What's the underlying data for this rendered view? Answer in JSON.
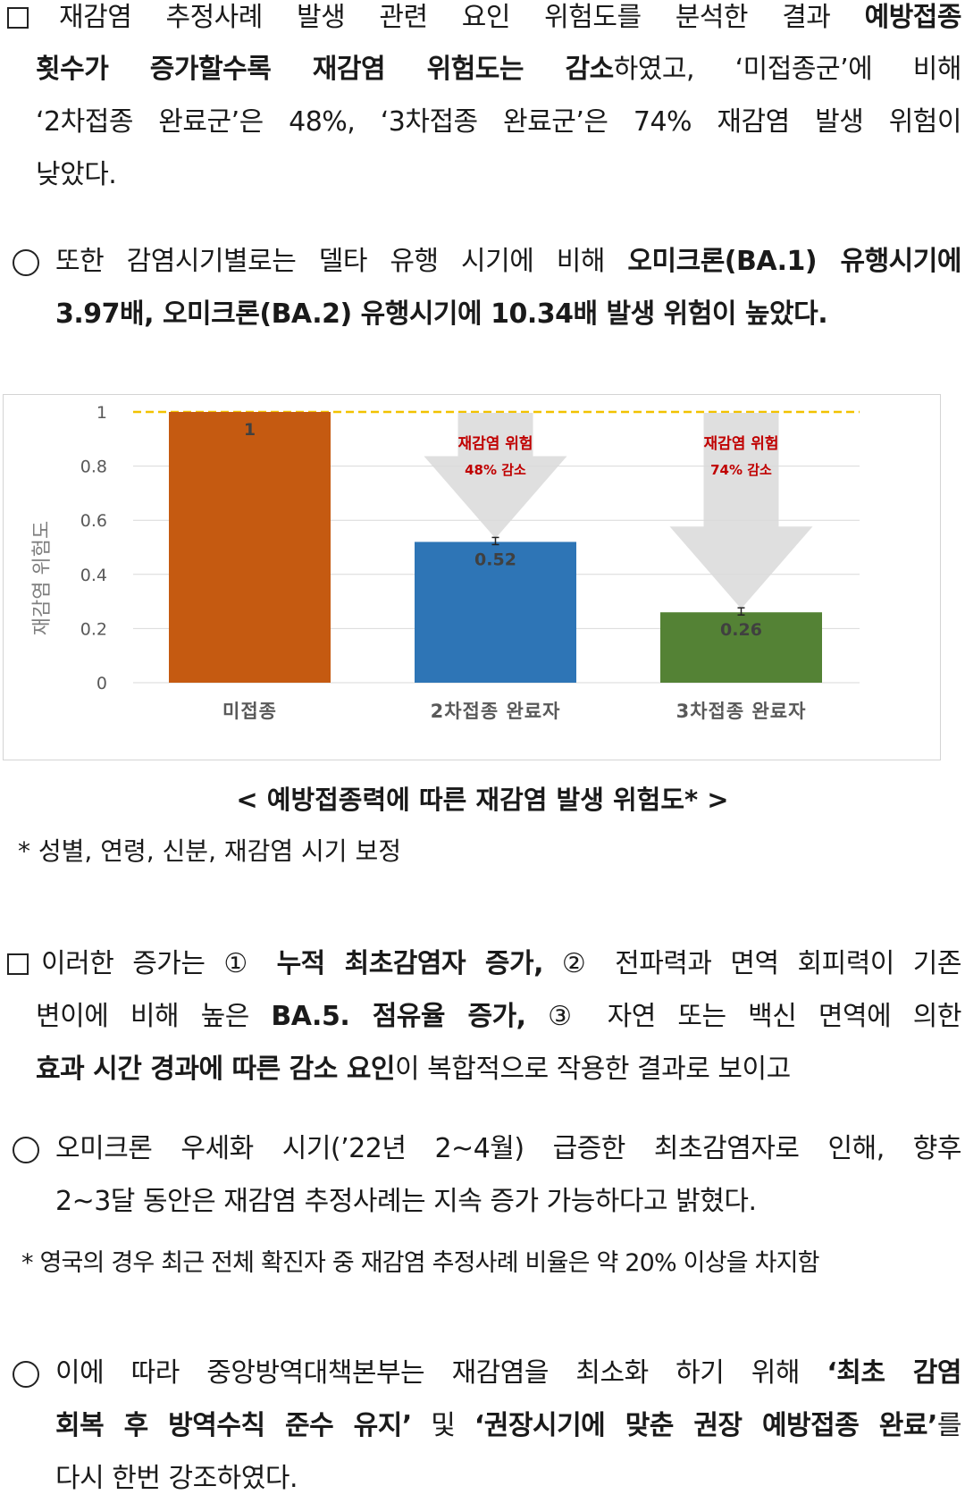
{
  "p1": {
    "l1a": "재감염 추정사례 발생 관련 요인 위험도를 분석한 결과 ",
    "l1b": "예방접종",
    "l2a": "횟수가 증가할수록 재감염 위험도는 감소",
    "l2b": "하였고, ‘미접종군’에 비해",
    "l3": "‘2차접종 완료군’은 48%, ‘3차접종 완료군’은 74% 재감염 발생 위험이",
    "l4": "낮았다."
  },
  "p2": {
    "l1a": "또한 감염시기별로는 델타 유행 시기에 비해 ",
    "l1b": "오미크론(BA.1) 유행시기에",
    "l2": "3.97배, 오미크론(BA.2) 유행시기에 10.34배 발생 위험이 높았다."
  },
  "chart_data": {
    "type": "bar",
    "categories": [
      "미접종",
      "2차접종 완료자",
      "3차접종 완료자"
    ],
    "values": [
      1,
      0.52,
      0.26
    ],
    "value_labels": [
      "1",
      "0.52",
      "0.26"
    ],
    "colors": [
      "#c55a11",
      "#2e75b6",
      "#548235"
    ],
    "ylabel": "재감염 위험도",
    "ylim": [
      0,
      1
    ],
    "yticks": [
      "0",
      "0.2",
      "0.4",
      "0.6",
      "0.8",
      "1"
    ],
    "reference_line": 1,
    "annotations": [
      {
        "line1": "재감염 위험",
        "line2": "48% 감소"
      },
      {
        "line1": "재감염 위험",
        "line2": "74% 감소"
      }
    ]
  },
  "caption": "< 예방접종력에 따른 재감염 발생 위험도* >",
  "caption_note": "* 성별, 연령, 신분, 재감염 시기 보정",
  "p3": {
    "l1a": "이러한 증가는 ① ",
    "l1b": "누적 최초감염자 증가,",
    "l1c": " ② 전파력과 면역 회피력이 기존",
    "l2a": "변이에 비해 높은 ",
    "l2b": "BA.5. 점유율 증가,",
    "l2c": " ③ 자연 또는 백신 면역에 의한",
    "l3a": "효과 시간 경과에 따른 감소 요인",
    "l3b": "이 복합적으로 작용한 결과로 보이고"
  },
  "p4": {
    "l1": "오미크론 우세화 시기(’22년 2~4월) 급증한 최초감염자로 인해, 향후",
    "l2": "2~3달 동안은 재감염 추정사례는 지속 증가 가능하다고 밝혔다."
  },
  "note2": "* 영국의 경우 최근 전체 확진자 중 재감염 추정사례 비율은 약 20% 이상을 차지함",
  "p5": {
    "l1a": "이에 따라 중앙방역대책본부는 재감염을 최소화 하기 위해 ",
    "l1b": "‘최초 감염",
    "l2a": "회복 후 방역수칙 준수 유지’",
    "l2b": " 및 ",
    "l2c": "‘권장시기에 맞춘 권장 예방접종 완료’",
    "l2d": "를",
    "l3": "다시 한번 강조하였다."
  }
}
